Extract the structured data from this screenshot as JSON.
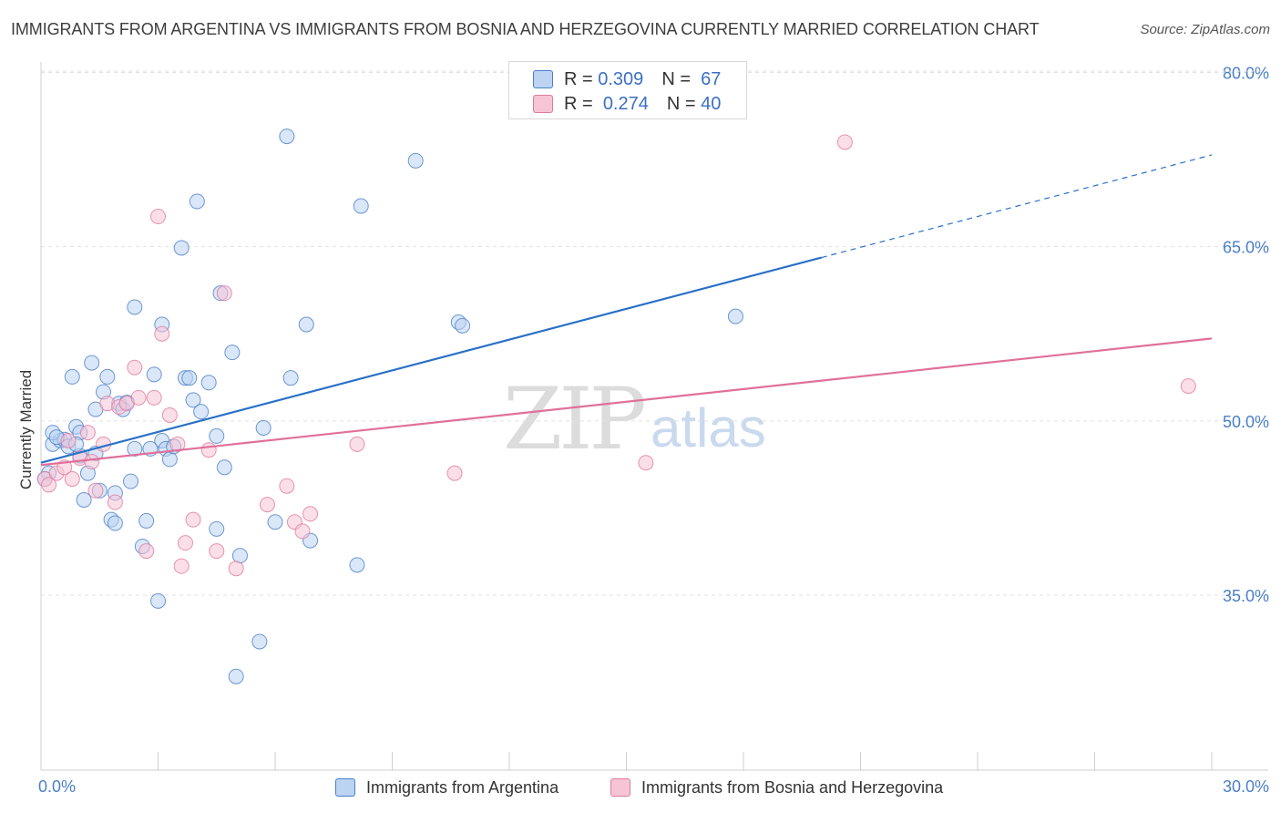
{
  "title": "IMMIGRANTS FROM ARGENTINA VS IMMIGRANTS FROM BOSNIA AND HERZEGOVINA CURRENTLY MARRIED CORRELATION CHART",
  "source": "Source: ZipAtlas.com",
  "watermark": {
    "zip": "ZIP",
    "atlas": "atlas"
  },
  "legend": {
    "row1": {
      "r_label": "R =",
      "r_value": "0.309",
      "n_label": "N =",
      "n_value": "67"
    },
    "row2": {
      "r_label": "R =",
      "r_value": "0.274",
      "n_label": "N =",
      "n_value": "40"
    }
  },
  "colors": {
    "blue": "#4a7fc8",
    "blue_fill": "#bcd3f2",
    "blue_line": "#2a70c8",
    "pink": "#e07aa0",
    "pink_fill": "#f7c4d5",
    "pink_line": "#e0709a"
  },
  "chart_data": {
    "type": "scatter",
    "ylabel": "Currently Married",
    "xlim": [
      0,
      30
    ],
    "ylim": [
      20,
      82
    ],
    "x_tick_labels": [
      "0.0%",
      "30.0%"
    ],
    "y_ticks": [
      35,
      50,
      65,
      80
    ],
    "y_tick_labels": [
      "35.0%",
      "50.0%",
      "65.0%",
      "80.0%"
    ],
    "series": [
      {
        "name": "Immigrants from Argentina",
        "points": [
          [
            0.2,
            45.5
          ],
          [
            0.3,
            48.0
          ],
          [
            0.5,
            48.3
          ],
          [
            0.6,
            48.4
          ],
          [
            0.7,
            47.8
          ],
          [
            0.8,
            53.8
          ],
          [
            0.9,
            49.5
          ],
          [
            1.0,
            47.0
          ],
          [
            1.0,
            49.0
          ],
          [
            1.1,
            43.2
          ],
          [
            1.2,
            45.5
          ],
          [
            1.3,
            55.0
          ],
          [
            1.4,
            47.2
          ],
          [
            1.5,
            44.0
          ],
          [
            1.6,
            52.5
          ],
          [
            1.7,
            53.8
          ],
          [
            1.8,
            41.5
          ],
          [
            1.9,
            43.8
          ],
          [
            1.9,
            41.2
          ],
          [
            2.0,
            51.5
          ],
          [
            2.1,
            51.0
          ],
          [
            2.3,
            44.8
          ],
          [
            2.4,
            47.6
          ],
          [
            2.4,
            59.8
          ],
          [
            2.6,
            39.2
          ],
          [
            2.7,
            41.4
          ],
          [
            2.8,
            47.6
          ],
          [
            2.9,
            54.0
          ],
          [
            3.0,
            34.5
          ],
          [
            3.1,
            58.3
          ],
          [
            3.1,
            48.3
          ],
          [
            3.2,
            47.6
          ],
          [
            3.3,
            46.7
          ],
          [
            3.4,
            47.8
          ],
          [
            3.6,
            64.9
          ],
          [
            3.7,
            53.7
          ],
          [
            3.8,
            53.7
          ],
          [
            3.9,
            51.8
          ],
          [
            4.0,
            68.9
          ],
          [
            4.1,
            50.8
          ],
          [
            4.3,
            53.3
          ],
          [
            4.5,
            48.7
          ],
          [
            4.5,
            40.7
          ],
          [
            4.6,
            61.0
          ],
          [
            4.7,
            46.0
          ],
          [
            4.9,
            55.9
          ],
          [
            5.0,
            28.0
          ],
          [
            5.1,
            38.4
          ],
          [
            5.6,
            31.0
          ],
          [
            5.7,
            49.4
          ],
          [
            6.0,
            41.3
          ],
          [
            6.3,
            74.5
          ],
          [
            6.4,
            53.7
          ],
          [
            6.8,
            58.3
          ],
          [
            6.9,
            39.7
          ],
          [
            8.1,
            37.6
          ],
          [
            8.2,
            68.5
          ],
          [
            9.6,
            72.4
          ],
          [
            10.7,
            58.5
          ],
          [
            10.8,
            58.2
          ],
          [
            17.8,
            59.0
          ],
          [
            0.1,
            45.0
          ],
          [
            0.3,
            49.0
          ],
          [
            0.4,
            48.6
          ],
          [
            0.9,
            48.0
          ],
          [
            1.4,
            51.0
          ],
          [
            2.2,
            51.6
          ]
        ]
      },
      {
        "name": "Immigrants from Bosnia and Herzegovina",
        "points": [
          [
            0.1,
            45.0
          ],
          [
            0.4,
            45.5
          ],
          [
            0.6,
            46.0
          ],
          [
            0.7,
            48.3
          ],
          [
            0.8,
            45.0
          ],
          [
            1.0,
            46.8
          ],
          [
            1.2,
            49.0
          ],
          [
            1.4,
            44.0
          ],
          [
            1.6,
            48.0
          ],
          [
            1.7,
            51.5
          ],
          [
            1.9,
            43.0
          ],
          [
            2.0,
            51.2
          ],
          [
            2.2,
            51.5
          ],
          [
            2.4,
            54.6
          ],
          [
            2.5,
            52.0
          ],
          [
            2.7,
            38.8
          ],
          [
            2.9,
            52.0
          ],
          [
            3.0,
            67.6
          ],
          [
            3.1,
            57.5
          ],
          [
            3.3,
            50.5
          ],
          [
            3.5,
            48.0
          ],
          [
            3.6,
            37.5
          ],
          [
            3.7,
            39.5
          ],
          [
            3.9,
            41.5
          ],
          [
            4.3,
            47.5
          ],
          [
            4.5,
            38.8
          ],
          [
            4.7,
            61.0
          ],
          [
            5.0,
            37.3
          ],
          [
            5.8,
            42.8
          ],
          [
            6.3,
            44.4
          ],
          [
            6.5,
            41.3
          ],
          [
            6.7,
            40.5
          ],
          [
            6.9,
            42.0
          ],
          [
            8.1,
            48.0
          ],
          [
            10.6,
            45.5
          ],
          [
            15.5,
            46.4
          ],
          [
            20.6,
            74.0
          ],
          [
            29.4,
            53.0
          ],
          [
            0.2,
            44.5
          ],
          [
            1.3,
            46.5
          ]
        ]
      }
    ],
    "trendlines": [
      {
        "series": "Immigrants from Argentina",
        "x": [
          0,
          30
        ],
        "y": [
          46.4,
          72.9
        ],
        "solid_until_x": 20.0
      },
      {
        "series": "Immigrants from Bosnia and Herzegovina",
        "x": [
          0,
          30
        ],
        "y": [
          46.2,
          57.1
        ]
      }
    ]
  }
}
